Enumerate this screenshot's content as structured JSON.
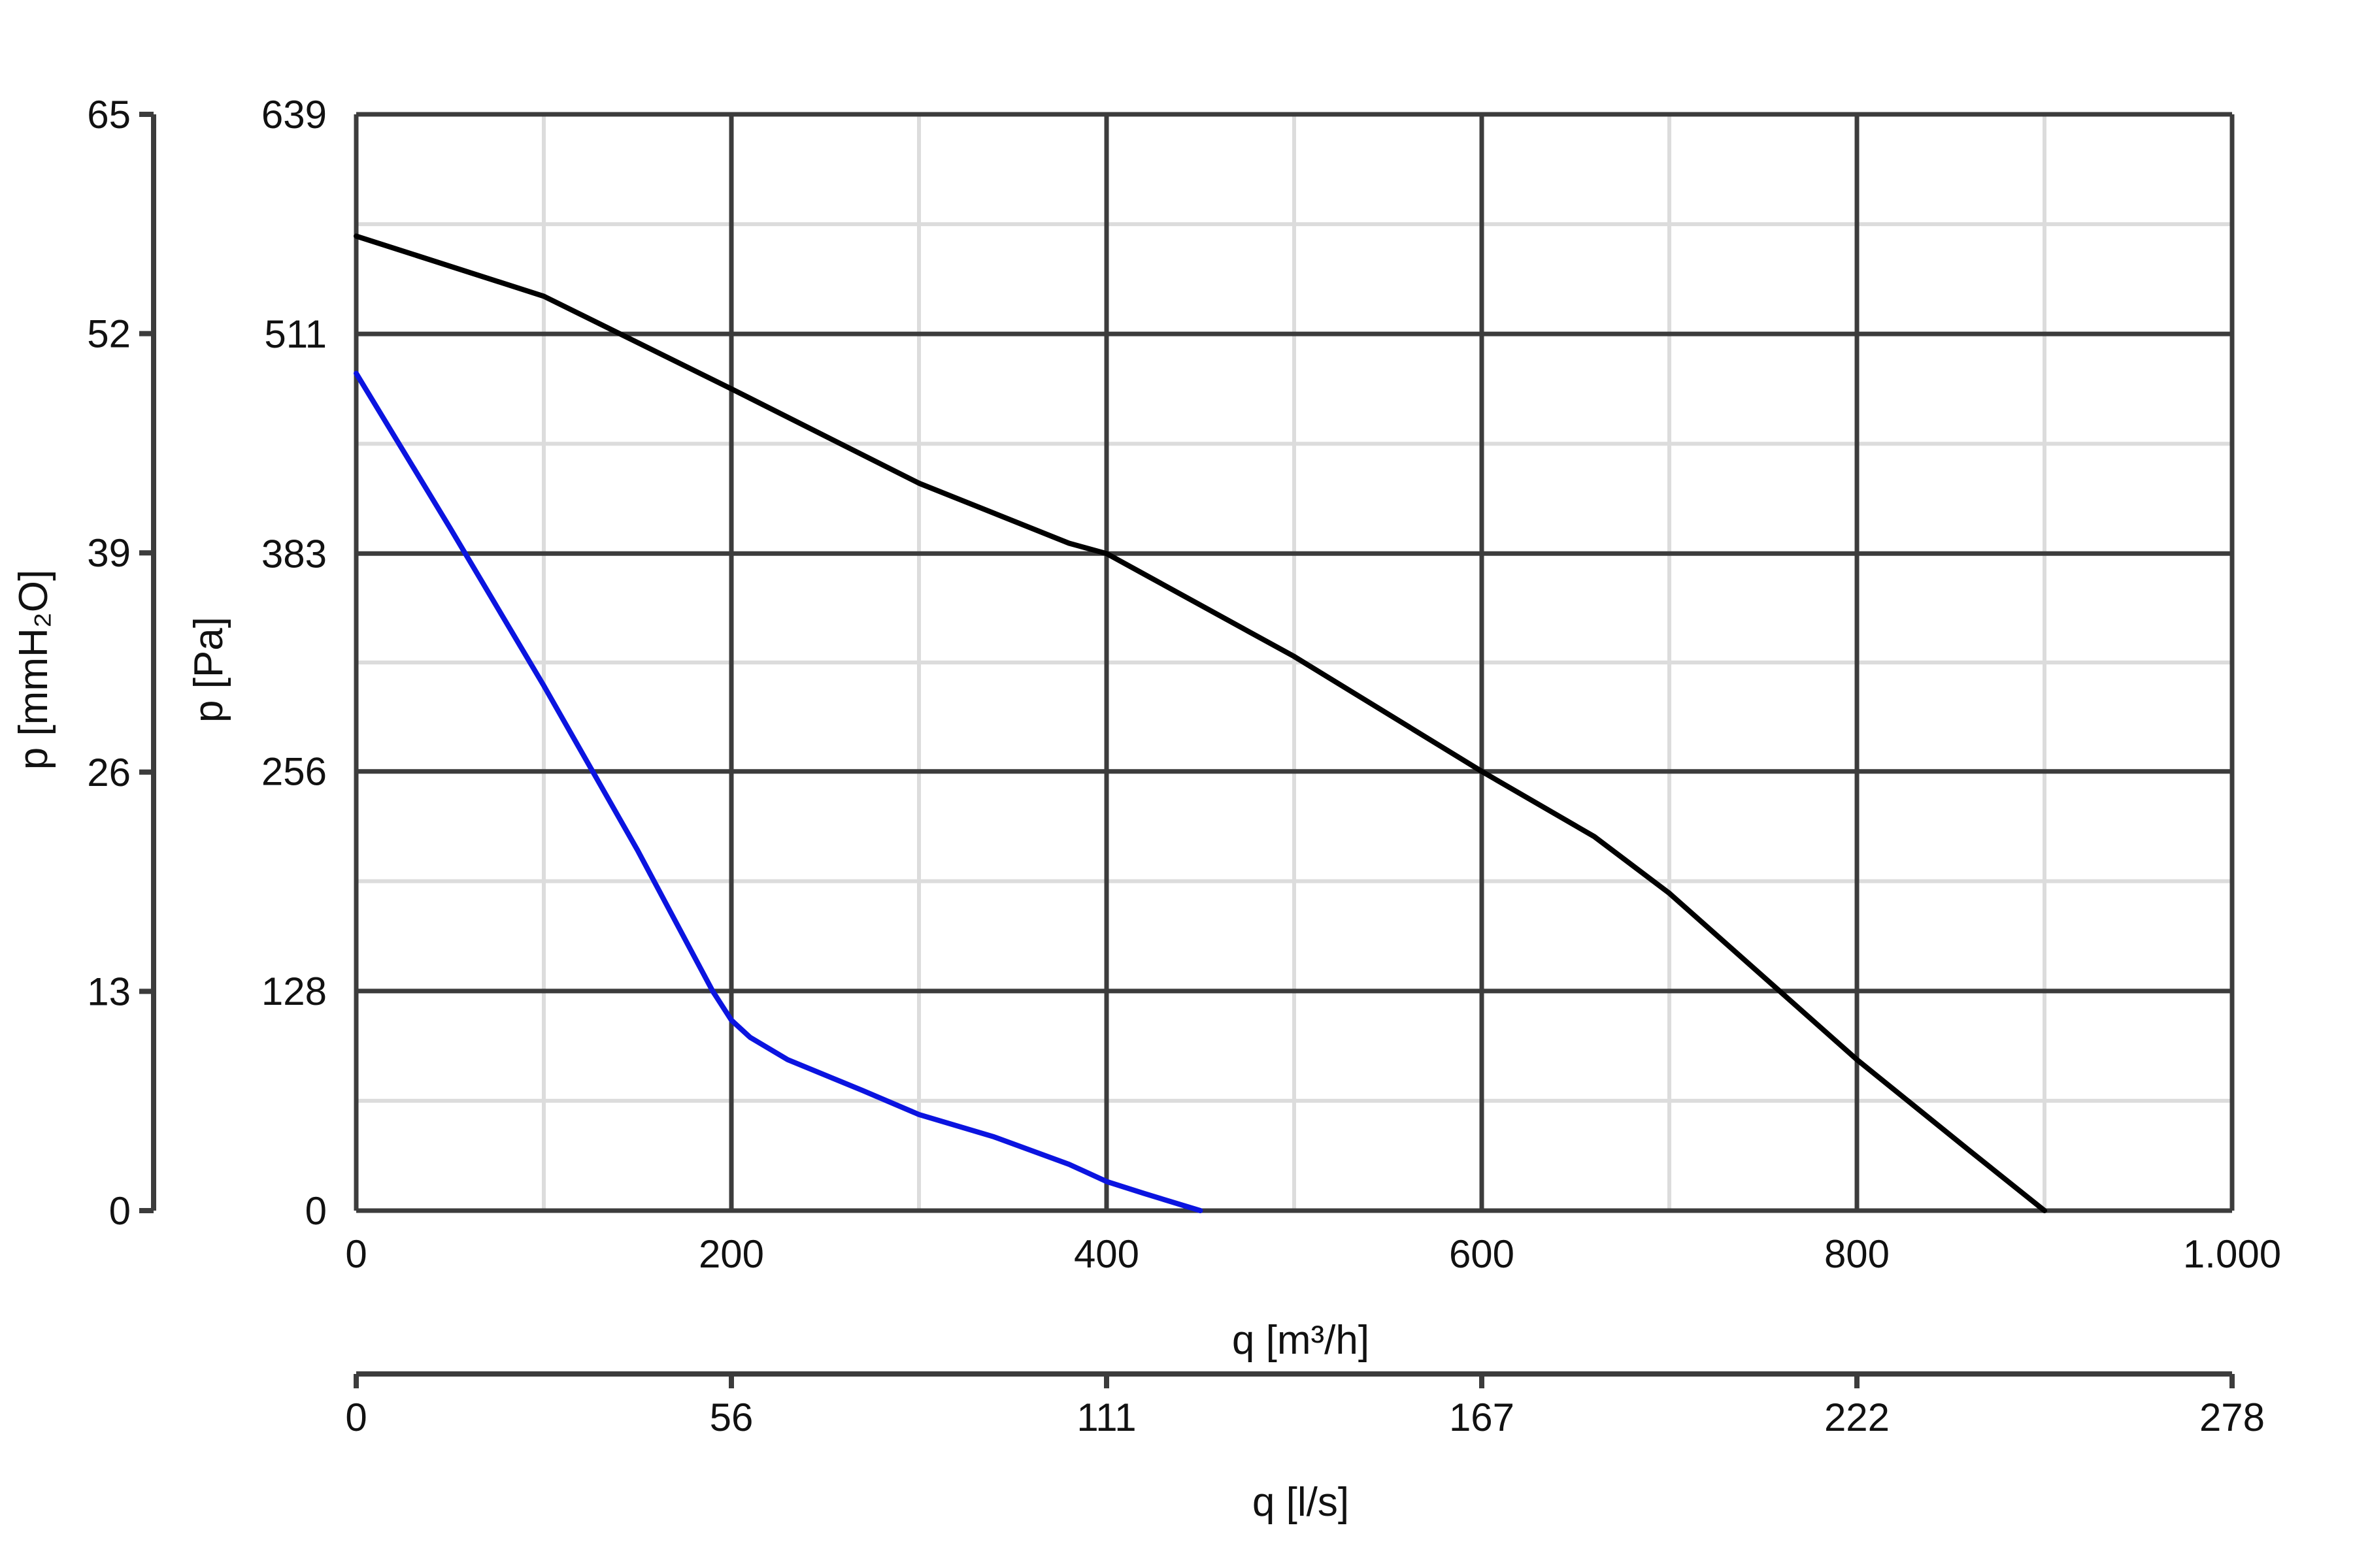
{
  "chart_data": {
    "type": "line",
    "title": "",
    "xlabel": "q [m³/h]",
    "ylabel": "p [Pa]",
    "xlim": [
      0,
      1000
    ],
    "ylim": [
      0,
      639
    ],
    "x_ticks": [
      0,
      200,
      400,
      600,
      800,
      1000
    ],
    "x_tick_labels": [
      "0",
      "200",
      "400",
      "600",
      "800",
      "1.000"
    ],
    "y_ticks": [
      0,
      128,
      256,
      383,
      511,
      639
    ],
    "y_tick_labels": [
      "0",
      "128",
      "256",
      "383",
      "511",
      "639"
    ],
    "secondary_x_axis": {
      "label": "q [l/s]",
      "tick_labels": [
        "0",
        "56",
        "111",
        "167",
        "222",
        "278"
      ]
    },
    "secondary_y_axis": {
      "label": "p [mmH₂O]",
      "tick_labels": [
        "0",
        "13",
        "26",
        "39",
        "52",
        "65"
      ]
    },
    "grid": true,
    "series": [
      {
        "color": "#000000",
        "x": [
          0,
          100,
          200,
          300,
          380,
          400,
          500,
          600,
          660,
          700,
          800,
          860,
          900
        ],
        "y": [
          568,
          533,
          479,
          424,
          389,
          383,
          323,
          256,
          218,
          185,
          88,
          35,
          0
        ]
      },
      {
        "color": "#0b14e0",
        "x": [
          0,
          50,
          100,
          150,
          190,
          200,
          210,
          230,
          270,
          300,
          340,
          380,
          400,
          420,
          450
        ],
        "y": [
          488,
          398,
          306,
          210,
          128,
          111,
          101,
          88,
          70,
          56,
          43,
          27,
          17,
          10,
          0
        ]
      }
    ]
  }
}
